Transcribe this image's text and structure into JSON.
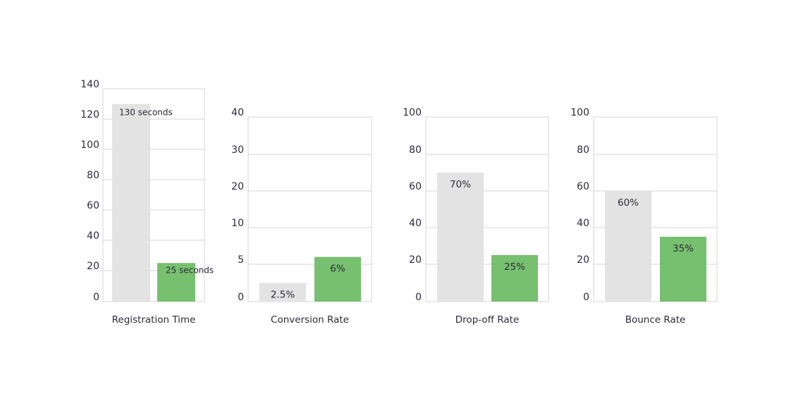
{
  "chart_data": [
    {
      "type": "bar",
      "title": "Registration Time",
      "categories": [
        "",
        ""
      ],
      "values": [
        130,
        25
      ],
      "labels": [
        "130 seconds",
        "25 seconds"
      ],
      "colors": [
        "#e3e3e3",
        "#77c06f"
      ],
      "yticks": [
        0,
        20,
        40,
        60,
        80,
        100,
        120,
        140
      ],
      "ylim": [
        0,
        140
      ],
      "grid": true
    },
    {
      "type": "bar",
      "title": "Conversion Rate",
      "categories": [
        "",
        ""
      ],
      "values": [
        2.5,
        6
      ],
      "labels": [
        "2.5%",
        "6%"
      ],
      "colors": [
        "#e3e3e3",
        "#77c06f"
      ],
      "yticks": [
        0,
        5,
        10,
        20,
        30,
        40
      ],
      "ylim": [
        0,
        40
      ],
      "grid": true
    },
    {
      "type": "bar",
      "title": "Drop-off Rate",
      "categories": [
        "",
        ""
      ],
      "values": [
        70,
        25
      ],
      "labels": [
        "70%",
        "25%"
      ],
      "colors": [
        "#e3e3e3",
        "#77c06f"
      ],
      "yticks": [
        0,
        20,
        40,
        60,
        80,
        100
      ],
      "ylim": [
        0,
        100
      ],
      "grid": true
    },
    {
      "type": "bar",
      "title": "Bounce Rate",
      "categories": [
        "",
        ""
      ],
      "values": [
        60,
        35
      ],
      "labels": [
        "60%",
        "35%"
      ],
      "colors": [
        "#e3e3e3",
        "#77c06f"
      ],
      "yticks": [
        0,
        20,
        40,
        60,
        80,
        100
      ],
      "ylim": [
        0,
        100
      ],
      "grid": true
    }
  ]
}
